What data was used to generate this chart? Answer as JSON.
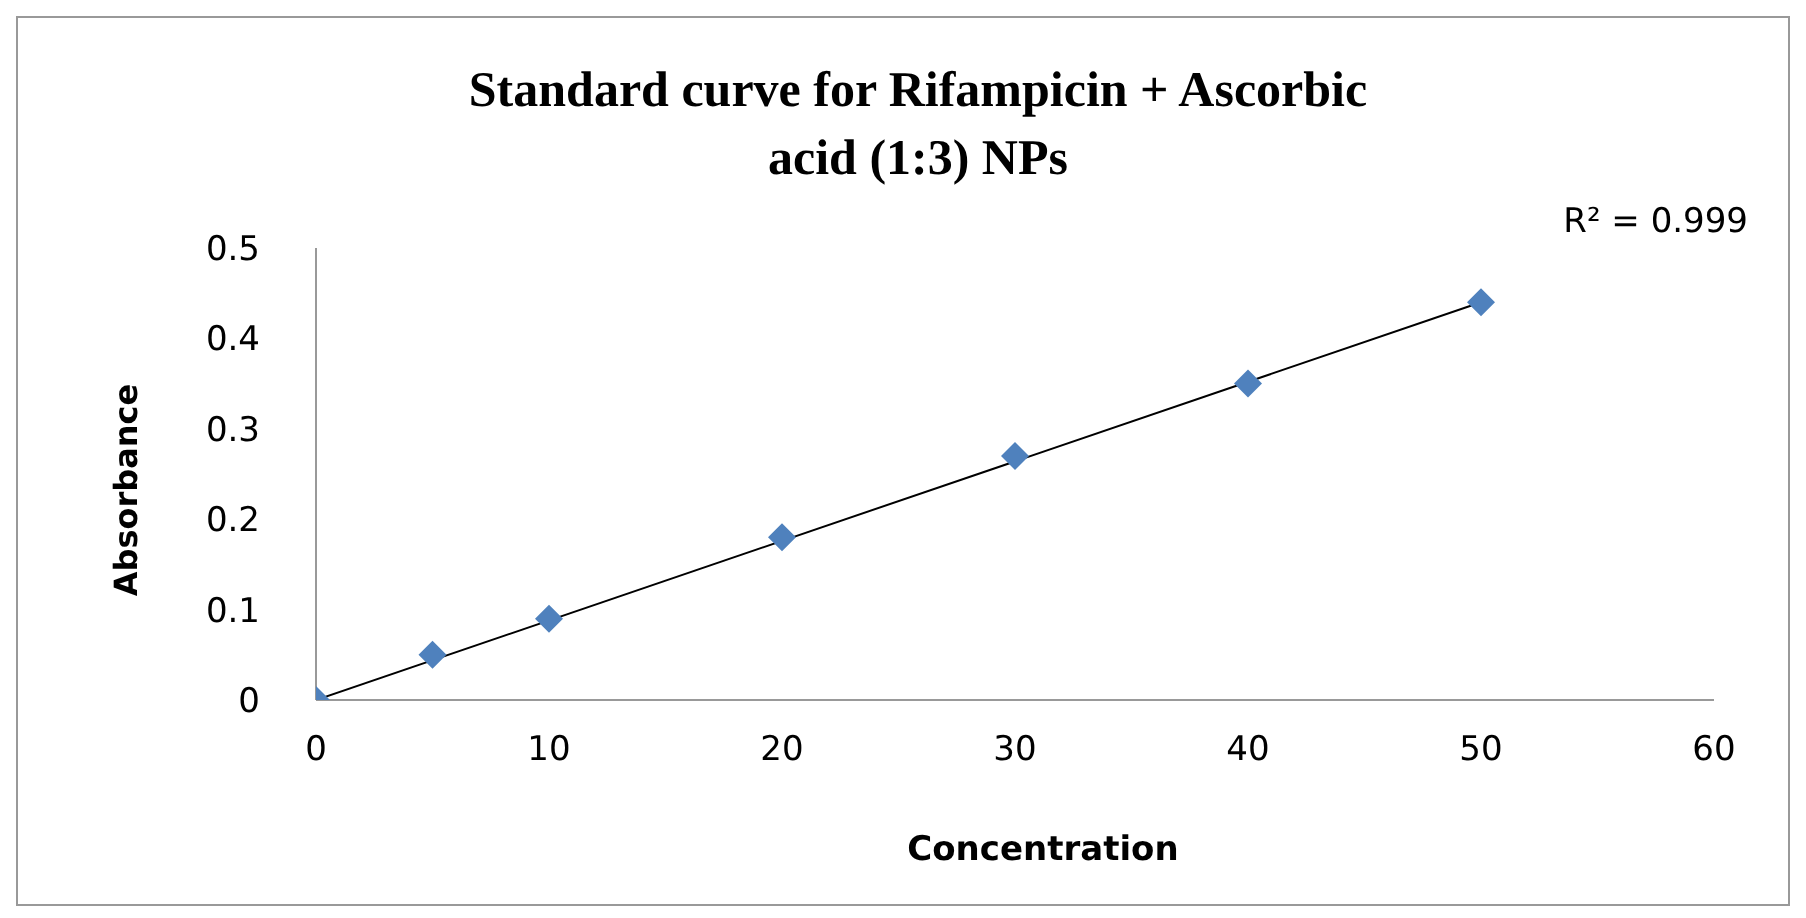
{
  "chart_data": {
    "type": "scatter",
    "title": "Standard curve for Rifampicin + Ascorbic acid (1:3) NPs",
    "xlabel": "Concentration",
    "ylabel": "Absorbance",
    "annotations": [
      "R² = 0.999"
    ],
    "x": [
      0,
      5,
      10,
      20,
      30,
      40,
      50
    ],
    "series": [
      {
        "color": "#4f81bd",
        "marker": "diamond",
        "values": [
          0,
          0.05,
          0.09,
          0.18,
          0.27,
          0.35,
          0.44
        ]
      },
      {
        "type": "line",
        "color": "#000000",
        "x": [
          0,
          50
        ],
        "values": [
          0.0,
          0.44
        ]
      }
    ],
    "xlim": [
      0,
      60
    ],
    "xticks": [
      0,
      10,
      20,
      30,
      40,
      50,
      60
    ],
    "ylim": [
      0,
      0.5
    ],
    "yticks": [
      0,
      0.1,
      0.2,
      0.3,
      0.4,
      0.5
    ],
    "grid": false,
    "legend": false
  }
}
